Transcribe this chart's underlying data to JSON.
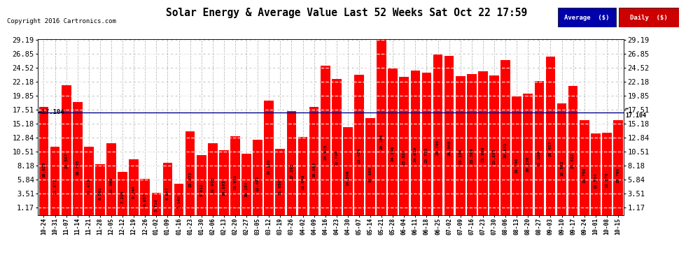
{
  "title": "Solar Energy & Average Value Last 52 Weeks Sat Oct 22 17:59",
  "copyright": "Copyright 2016 Cartronics.com",
  "average_value": 17.104,
  "average_label": "17.104",
  "legend_average_label": "Average  ($)",
  "legend_daily_label": "Daily  ($)",
  "bar_color": "#FF0000",
  "average_line_color": "#00008B",
  "background_color": "#FFFFFF",
  "plot_bg_color": "#FFFFFF",
  "grid_color": "#BBBBBB",
  "yticks": [
    1.17,
    3.51,
    5.84,
    8.18,
    10.51,
    12.84,
    15.18,
    17.51,
    19.85,
    22.18,
    24.52,
    26.85,
    29.19
  ],
  "categories": [
    "10-24",
    "10-31",
    "11-07",
    "11-14",
    "11-21",
    "11-28",
    "12-05",
    "12-12",
    "12-19",
    "12-26",
    "01-02",
    "01-09",
    "01-16",
    "01-23",
    "01-30",
    "02-06",
    "02-13",
    "02-20",
    "02-27",
    "03-05",
    "03-12",
    "03-19",
    "03-26",
    "04-02",
    "04-09",
    "04-16",
    "04-23",
    "04-30",
    "05-07",
    "05-14",
    "05-21",
    "05-28",
    "06-04",
    "06-11",
    "06-18",
    "06-25",
    "07-02",
    "07-09",
    "07-16",
    "07-23",
    "07-30",
    "08-06",
    "08-13",
    "08-20",
    "08-27",
    "09-03",
    "09-10",
    "09-17",
    "09-24",
    "10-01",
    "10-08",
    "10-15"
  ],
  "values": [
    18.02,
    11.377,
    21.597,
    18.795,
    11.413,
    8.501,
    11.969,
    7.208,
    9.244,
    6.057,
    3.718,
    8.647,
    5.145,
    13.973,
    9.912,
    11.938,
    10.803,
    13.081,
    10.154,
    12.492,
    19.108,
    11.05,
    17.293,
    13.049,
    18.065,
    24.925,
    22.7,
    14.59,
    23.424,
    16.108,
    29.188,
    24.396,
    23.027,
    24.019,
    23.773,
    26.796,
    26.569,
    23.15,
    23.5,
    23.98,
    23.285,
    25.831,
    19.746,
    20.23,
    22.28,
    26.417,
    18.582,
    21.532,
    15.756,
    13.534,
    13.675,
    15.799
  ]
}
